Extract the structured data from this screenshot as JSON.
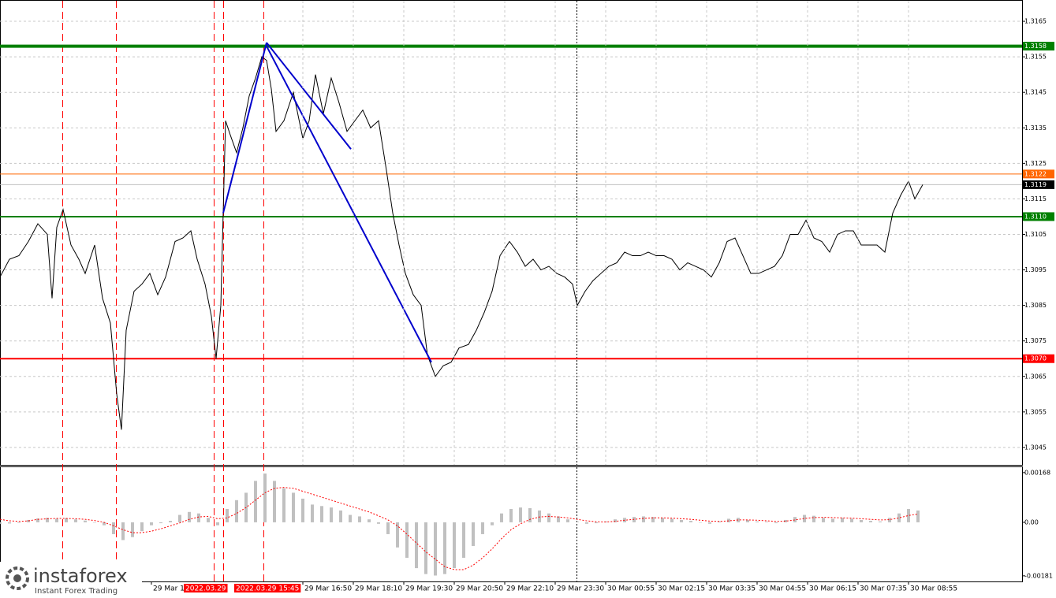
{
  "chart_data": [
    {
      "type": "line",
      "x": [
        0,
        3,
        6,
        9,
        12,
        15,
        16.5,
        18,
        20,
        22.5,
        25,
        27,
        30,
        32.5,
        35,
        37,
        38.5,
        40,
        42.5,
        45,
        47.5,
        50,
        52.5,
        55.5,
        58,
        60.5,
        62.5,
        65,
        67,
        68.5,
        70,
        71.5,
        73,
        75,
        77,
        79,
        81,
        83,
        84.5,
        86,
        87.5,
        90,
        93,
        96,
        98,
        100,
        102.5,
        105,
        107.5,
        110,
        112.5,
        115,
        117.5,
        120,
        122.5,
        124.5,
        126.5,
        128.5,
        131,
        133.5,
        135.5,
        138,
        140.5,
        143,
        145.5,
        148.5,
        151,
        153.5,
        156,
        158.5,
        161.5,
        164,
        166.5,
        169,
        171.5,
        174,
        176.5,
        179,
        181.5,
        183,
        185.5,
        188,
        190.5,
        193,
        195.5,
        198,
        200.5,
        203,
        205.5,
        208,
        210.5,
        213,
        215.5,
        218,
        220.5,
        223,
        225.5,
        228,
        230.5,
        233,
        235.5,
        238,
        240.5,
        243,
        245.5,
        248,
        250.5,
        253,
        255.5,
        258,
        260.5,
        263,
        265.5,
        268,
        270.5,
        273,
        275.5,
        278,
        280.5,
        283,
        285.5,
        288,
        290,
        292.5
      ],
      "values": [
        1.3093,
        1.3098,
        1.3099,
        1.3103,
        1.3108,
        1.3105,
        1.3087,
        1.3107,
        1.3112,
        1.3102,
        1.3098,
        1.3094,
        1.3102,
        1.3087,
        1.308,
        1.306,
        1.305,
        1.3078,
        1.3089,
        1.3091,
        1.3094,
        1.3088,
        1.3093,
        1.3103,
        1.3104,
        1.3106,
        1.3098,
        1.3091,
        1.3082,
        1.307,
        1.3085,
        1.3137,
        1.3133,
        1.3128,
        1.3135,
        1.3144,
        1.3149,
        1.3155,
        1.3154,
        1.3146,
        1.3134,
        1.3137,
        1.3145,
        1.3132,
        1.3137,
        1.315,
        1.3139,
        1.3149,
        1.3142,
        1.3134,
        1.3137,
        1.314,
        1.3135,
        1.3137,
        1.3123,
        1.3111,
        1.3102,
        1.3094,
        1.3088,
        1.3085,
        1.3071,
        1.3065,
        1.3068,
        1.3069,
        1.3073,
        1.3074,
        1.3078,
        1.3083,
        1.3089,
        1.3099,
        1.3103,
        1.31,
        1.3096,
        1.3098,
        1.3095,
        1.3096,
        1.3094,
        1.3093,
        1.3091,
        1.3085,
        1.3089,
        1.3092,
        1.3094,
        1.3096,
        1.3097,
        1.31,
        1.3099,
        1.3099,
        1.31,
        1.3099,
        1.3099,
        1.3098,
        1.3095,
        1.3097,
        1.3096,
        1.3095,
        1.3093,
        1.3097,
        1.3103,
        1.3104,
        1.3099,
        1.3094,
        1.3094,
        1.3095,
        1.3096,
        1.3099,
        1.3105,
        1.3105,
        1.3109,
        1.3104,
        1.3103,
        1.31,
        1.3105,
        1.3106,
        1.3106,
        1.3102,
        1.3102,
        1.3102,
        1.31,
        1.3111,
        1.3116,
        1.312,
        1.3115,
        1.3119
      ],
      "color": "#000000",
      "xlim": [
        0,
        324
      ],
      "ylim": [
        1.30401,
        1.3171
      ],
      "yticks": [
        1.3165,
        1.3155,
        1.3145,
        1.3135,
        1.3125,
        1.3115,
        1.3105,
        1.3095,
        1.3085,
        1.3075,
        1.3065,
        1.3055,
        1.3045
      ],
      "grid": true,
      "levels": [
        {
          "value": 1.3158,
          "color": "#008000",
          "weight": "heavy"
        },
        {
          "value": 1.3122,
          "color": "#ff6600",
          "weight": "light"
        },
        {
          "value": 1.3119,
          "color": "#c0c0c0",
          "label_color": "#000000",
          "weight": "light"
        },
        {
          "value": 1.311,
          "label": "1.3110",
          "color": "#008000",
          "weight": "medium"
        },
        {
          "value": 1.307,
          "label": "1.3070",
          "color": "#ff0000",
          "weight": "medium"
        }
      ],
      "vlines": [
        {
          "x": 19.75,
          "color": "#ff0000",
          "style": "dashed"
        },
        {
          "x": 36.75,
          "color": "#ff0000",
          "style": "dashed"
        },
        {
          "x": 67.75,
          "color": "#ff0000",
          "style": "dashed"
        },
        {
          "x": 70.75,
          "color": "#ff0000",
          "style": "dashed"
        },
        {
          "x": 83.5,
          "color": "#ff0000",
          "style": "dashed"
        },
        {
          "x": 182.75,
          "color": "#000000",
          "style": "dotted"
        }
      ],
      "trendlines": [
        {
          "x": [
            70.75,
            84.5
          ],
          "y": [
            1.3111,
            1.3159
          ]
        },
        {
          "x": [
            84.5,
            111.25
          ],
          "y": [
            1.3159,
            1.3129
          ]
        },
        {
          "x": [
            84.5,
            136.75
          ],
          "y": [
            1.3158,
            1.3069
          ]
        }
      ],
      "trend_color": "#0000cc"
    },
    {
      "type": "macd",
      "x": [
        0,
        3,
        6,
        9,
        12,
        15,
        18,
        21,
        24,
        27,
        30,
        33,
        36,
        39,
        42,
        45,
        48,
        51,
        54,
        57,
        60,
        63,
        66,
        69,
        72,
        75,
        78,
        81,
        84,
        87,
        90,
        93,
        96,
        99,
        102,
        105,
        108,
        111,
        114,
        117,
        120,
        123,
        126,
        129,
        132,
        135,
        138,
        141,
        144,
        147,
        150,
        153,
        156,
        159,
        162,
        165,
        168,
        171,
        174,
        177,
        180,
        183,
        186,
        189,
        192,
        195,
        198,
        201,
        204,
        207,
        210,
        213,
        216,
        219,
        222,
        225,
        228,
        231,
        234,
        237,
        240,
        243,
        246,
        249,
        252,
        255,
        258,
        261,
        264,
        267,
        270,
        273,
        276,
        279,
        282,
        285,
        288,
        291
      ],
      "histogram": {
        "color": "#c0c0c0",
        "values": [
          -5e-05,
          -4e-05,
          -2e-05,
          8e-05,
          0.00013,
          0.00015,
          0.00012,
          0.00014,
          0.0001,
          6e-05,
          0.0,
          -0.0001,
          -0.0004,
          -0.0006,
          -0.0005,
          -0.0003,
          -0.0001,
          -3e-05,
          5e-05,
          0.00025,
          0.00035,
          0.0003,
          0.00015,
          -0.0001,
          0.00045,
          0.00075,
          0.001,
          0.0014,
          0.00165,
          0.0014,
          0.00115,
          0.001,
          0.0008,
          0.0006,
          0.00055,
          0.0005,
          0.0004,
          0.00025,
          0.0002,
          0.0001,
          -5e-05,
          -0.0004,
          -0.00085,
          -0.0012,
          -0.00155,
          -0.00175,
          -0.0018,
          -0.00175,
          -0.00155,
          -0.0012,
          -0.0008,
          -0.0004,
          -0.0001,
          0.0003,
          0.00045,
          0.0005,
          0.00048,
          0.0004,
          0.0003,
          0.0002,
          0.0001,
          2e-05,
          -5e-05,
          -3e-05,
          3e-05,
          0.0001,
          0.00015,
          0.00018,
          0.0002,
          0.00018,
          0.00015,
          0.00012,
          8e-05,
          5e-05,
          0.0,
          -5e-05,
          3e-05,
          0.00012,
          0.00015,
          8e-05,
          3e-05,
          2e-05,
          -3e-05,
          8e-05,
          0.00018,
          0.00025,
          0.00022,
          0.00015,
          0.00012,
          0.00015,
          0.00012,
          8e-05,
          5e-05,
          3e-05,
          0.00015,
          0.0003,
          0.00045,
          0.0004
        ]
      },
      "signal": {
        "color": "#ff0000",
        "values": [
          0.0001,
          5e-05,
          3e-05,
          5e-05,
          0.0001,
          0.00012,
          0.00013,
          0.00013,
          0.00012,
          0.0001,
          6e-05,
          0.0,
          -0.00012,
          -0.00025,
          -0.00035,
          -0.00035,
          -0.0003,
          -0.00022,
          -0.00012,
          -2e-05,
          0.0001,
          0.00018,
          0.0002,
          0.00012,
          0.00015,
          0.0003,
          0.0005,
          0.00075,
          0.001,
          0.00115,
          0.00118,
          0.00115,
          0.00105,
          0.00095,
          0.00085,
          0.00075,
          0.00065,
          0.00055,
          0.00045,
          0.00035,
          0.00022,
          8e-05,
          -0.00012,
          -0.0004,
          -0.0007,
          -0.001,
          -0.00125,
          -0.0015,
          -0.0016,
          -0.0016,
          -0.00145,
          -0.0012,
          -0.0009,
          -0.00055,
          -0.00025,
          -5e-05,
          0.0001,
          0.00018,
          0.0002,
          0.00018,
          0.00015,
          0.0001,
          5e-05,
          2e-05,
          1e-05,
          3e-05,
          7e-05,
          0.0001,
          0.00013,
          0.00015,
          0.00015,
          0.00014,
          0.00012,
          0.0001,
          7e-05,
          4e-05,
          3e-05,
          5e-05,
          8e-05,
          8e-05,
          7e-05,
          5e-05,
          3e-05,
          4e-05,
          8e-05,
          0.00013,
          0.00016,
          0.00017,
          0.00016,
          0.00015,
          0.00014,
          0.00012,
          0.0001,
          8e-05,
          9e-05,
          0.00015,
          0.00023,
          0.00028
        ]
      },
      "xlim": [
        0,
        324
      ],
      "ylim": [
        -0.002,
        0.00189
      ],
      "yticks": [
        0.00168,
        {
          "value": 0,
          "label": "0.00"
        },
        -0.00181
      ],
      "xticks": [
        {
          "value": 48,
          "label": "29 Mar 1"
        },
        {
          "value": 96,
          "label": "29 Mar 16:50"
        },
        {
          "value": 112,
          "label": "29 Mar 18:10"
        },
        {
          "value": 128,
          "label": "29 Mar 19:30"
        },
        {
          "value": 144,
          "label": "29 Mar 20:50"
        },
        {
          "value": 160,
          "label": "29 Mar 22:10"
        },
        {
          "value": 176,
          "label": "29 Mar 23:30"
        },
        {
          "value": 192,
          "label": "30 Mar 00:55"
        },
        {
          "value": 208,
          "label": "30 Mar 02:15"
        },
        {
          "value": 224,
          "label": "30 Mar 03:35"
        },
        {
          "value": 240,
          "label": "30 Mar 04:55"
        },
        {
          "value": 256,
          "label": "30 Mar 06:15"
        },
        {
          "value": 272,
          "label": "30 Mar 07:35"
        },
        {
          "value": 288,
          "label": "30 Mar 08:55"
        }
      ],
      "highlighted_labels": [
        {
          "value": 58.25,
          "label": "2022.03.29"
        },
        {
          "value": 74.25,
          "label": "2022.03.29 15:45"
        }
      ]
    }
  ],
  "branding": {
    "name": "instaforex",
    "tagline": "Instant Forex Trading"
  }
}
